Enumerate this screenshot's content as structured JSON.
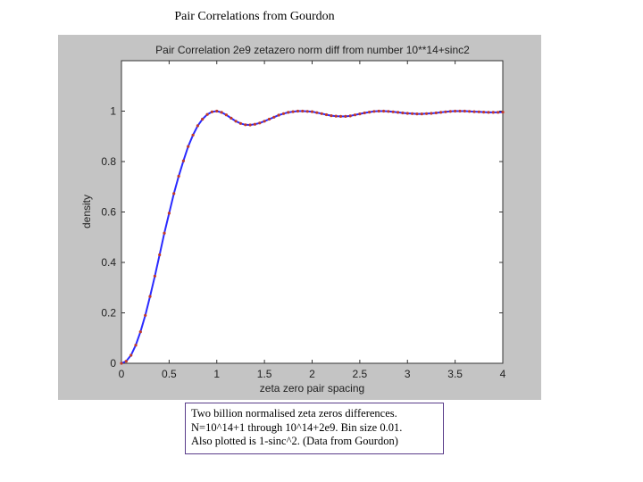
{
  "slide": {
    "title": "Pair Correlations from Gourdon",
    "caption": [
      "Two billion normalised zeta zeros differences.",
      "N=10^14+1 through 10^14+2e9. Bin size 0.01.",
      "Also plotted is 1-sinc^2. (Data from Gourdon)"
    ]
  },
  "colors": {
    "panel_background": "#c4c4c4",
    "plot_background": "#ffffff",
    "data_points": "#c0392b",
    "theory_curve": "#2a2aff",
    "caption_border": "#5a3d8a"
  },
  "chart_data": {
    "type": "line",
    "title": "Pair Correlation 2e9 zetazero norm diff from number 10**14+sinc2",
    "xlabel": "zeta zero pair spacing",
    "ylabel": "density",
    "xlim": [
      0,
      4
    ],
    "ylim": [
      0,
      1.2
    ],
    "xticks": [
      "0",
      "0.5",
      "1",
      "1.5",
      "2",
      "2.5",
      "3",
      "3.5",
      "4"
    ],
    "yticks": [
      "0",
      "0.2",
      "0.4",
      "0.6",
      "0.8",
      "1"
    ],
    "grid": false,
    "series": [
      {
        "role": "data points",
        "style": "dots",
        "x": [
          0.0,
          0.05,
          0.1,
          0.15,
          0.2,
          0.25,
          0.3,
          0.35,
          0.4,
          0.45,
          0.5,
          0.55,
          0.6,
          0.65,
          0.7,
          0.75,
          0.8,
          0.85,
          0.9,
          0.95,
          1.0,
          1.05,
          1.1,
          1.15,
          1.2,
          1.25,
          1.3,
          1.35,
          1.4,
          1.45,
          1.5,
          1.55,
          1.6,
          1.65,
          1.7,
          1.75,
          1.8,
          1.85,
          1.9,
          1.95,
          2.0,
          2.05,
          2.1,
          2.15,
          2.2,
          2.25,
          2.3,
          2.35,
          2.4,
          2.45,
          2.5,
          2.55,
          2.6,
          2.65,
          2.7,
          2.75,
          2.8,
          2.85,
          2.9,
          2.95,
          3.0,
          3.05,
          3.1,
          3.15,
          3.2,
          3.25,
          3.3,
          3.35,
          3.4,
          3.45,
          3.5,
          3.55,
          3.6,
          3.65,
          3.7,
          3.75,
          3.8,
          3.85,
          3.9,
          3.95,
          4.0
        ],
        "y": [
          0.0,
          0.008,
          0.032,
          0.072,
          0.125,
          0.19,
          0.265,
          0.346,
          0.43,
          0.516,
          0.595,
          0.673,
          0.742,
          0.803,
          0.86,
          0.905,
          0.942,
          0.968,
          0.987,
          0.997,
          1.0,
          0.995,
          0.985,
          0.972,
          0.96,
          0.951,
          0.946,
          0.945,
          0.948,
          0.953,
          0.96,
          0.968,
          0.976,
          0.984,
          0.99,
          0.995,
          0.998,
          1.0,
          1.0,
          0.999,
          0.998,
          0.994,
          0.99,
          0.986,
          0.982,
          0.98,
          0.979,
          0.979,
          0.981,
          0.985,
          0.989,
          0.993,
          0.996,
          0.999,
          1.0,
          1.0,
          0.999,
          0.997,
          0.995,
          0.993,
          0.991,
          0.99,
          0.989,
          0.989,
          0.99,
          0.991,
          0.993,
          0.995,
          0.997,
          0.999,
          1.0,
          1.0,
          1.0,
          0.999,
          0.998,
          0.997,
          0.996,
          0.995,
          0.995,
          0.995,
          0.996
        ]
      },
      {
        "role": "theory curve 1-sinc^2",
        "style": "line",
        "x": [
          0.0,
          0.05,
          0.1,
          0.15,
          0.2,
          0.25,
          0.3,
          0.35,
          0.4,
          0.45,
          0.5,
          0.55,
          0.6,
          0.65,
          0.7,
          0.75,
          0.8,
          0.85,
          0.9,
          0.95,
          1.0,
          1.05,
          1.1,
          1.15,
          1.2,
          1.25,
          1.3,
          1.35,
          1.4,
          1.45,
          1.5,
          1.55,
          1.6,
          1.65,
          1.7,
          1.75,
          1.8,
          1.85,
          1.9,
          1.95,
          2.0,
          2.05,
          2.1,
          2.15,
          2.2,
          2.25,
          2.3,
          2.35,
          2.4,
          2.45,
          2.5,
          2.55,
          2.6,
          2.65,
          2.7,
          2.75,
          2.8,
          2.85,
          2.9,
          2.95,
          3.0,
          3.05,
          3.1,
          3.15,
          3.2,
          3.25,
          3.3,
          3.35,
          3.4,
          3.45,
          3.5,
          3.55,
          3.6,
          3.65,
          3.7,
          3.75,
          3.8,
          3.85,
          3.9,
          3.95,
          4.0
        ],
        "y": [
          0.0,
          0.008,
          0.032,
          0.072,
          0.125,
          0.19,
          0.265,
          0.346,
          0.43,
          0.516,
          0.595,
          0.673,
          0.742,
          0.803,
          0.86,
          0.905,
          0.942,
          0.968,
          0.987,
          0.997,
          1.0,
          0.995,
          0.985,
          0.972,
          0.96,
          0.951,
          0.946,
          0.945,
          0.948,
          0.953,
          0.96,
          0.968,
          0.976,
          0.984,
          0.99,
          0.995,
          0.998,
          1.0,
          1.0,
          0.999,
          0.998,
          0.994,
          0.99,
          0.986,
          0.982,
          0.98,
          0.979,
          0.979,
          0.981,
          0.985,
          0.989,
          0.993,
          0.996,
          0.999,
          1.0,
          1.0,
          0.999,
          0.997,
          0.995,
          0.993,
          0.991,
          0.99,
          0.989,
          0.989,
          0.99,
          0.991,
          0.993,
          0.995,
          0.997,
          0.999,
          1.0,
          1.0,
          1.0,
          0.999,
          0.998,
          0.997,
          0.996,
          0.995,
          0.995,
          0.995,
          0.996
        ]
      }
    ]
  }
}
